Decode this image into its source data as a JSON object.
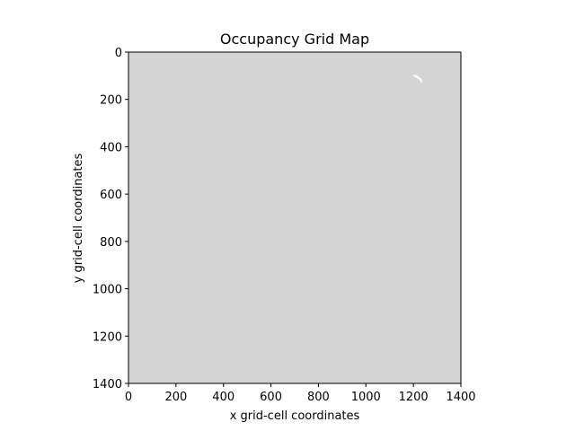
{
  "chart_data": {
    "type": "heatmap",
    "title": "Occupancy Grid Map",
    "xlabel": "x grid-cell coordinates",
    "ylabel": "y grid-cell coordinates",
    "xlim": [
      0,
      1400
    ],
    "ylim": [
      1400,
      0
    ],
    "y_axis_inverted": true,
    "grid": false,
    "x_ticks": [
      "0",
      "200",
      "400",
      "600",
      "800",
      "1000",
      "1200",
      "1400"
    ],
    "y_ticks": [
      "0",
      "200",
      "400",
      "600",
      "800",
      "1000",
      "1200",
      "1400"
    ],
    "background_value": "unknown",
    "colors": {
      "unknown": "#d4d4d4",
      "free": "#ffffff"
    },
    "free_region": {
      "label": "free",
      "points": [
        [
          1196,
          96
        ],
        [
          1216,
          98
        ],
        [
          1236,
          118
        ],
        [
          1236,
          132
        ],
        [
          1222,
          114
        ],
        [
          1204,
          104
        ]
      ]
    }
  }
}
